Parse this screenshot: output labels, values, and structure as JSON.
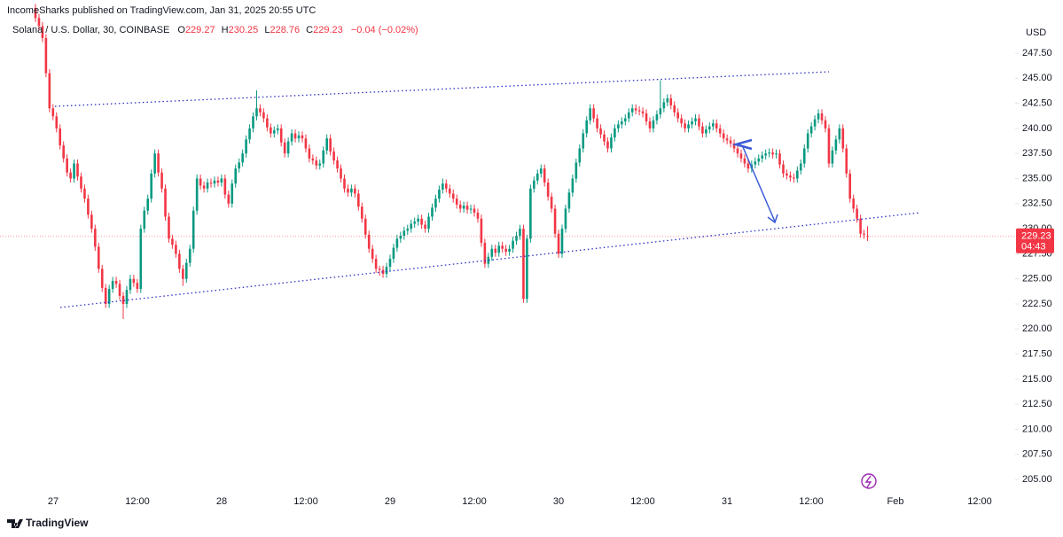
{
  "chart_data": {
    "type": "candlestick",
    "subtitle": "IncomeSharks published on TradingView.com, Jan 31, 2025 20:55 UTC",
    "title": "Solana / U.S. Dollar, 30, COINBASE",
    "ohlc_letters": [
      "O",
      "H",
      "L",
      "C"
    ],
    "change_label": "−0.04 (−0.02%)",
    "countdown": "04:43",
    "y_axis_unit": "USD",
    "watermark": "TradingView",
    "up_color": "#089981",
    "down_color": "#f23645",
    "grid": false,
    "xtick_labels": [
      "27",
      "12:00",
      "28",
      "12:00",
      "29",
      "12:00",
      "30",
      "12:00",
      "31",
      "12:00",
      "Feb",
      "12:00"
    ],
    "ylim": [
      201.5,
      252.8
    ],
    "yticks": [
      {
        "value": 205,
        "label": "205.00"
      },
      {
        "value": 207.5,
        "label": "207.50"
      },
      {
        "value": 210,
        "label": "210.00"
      },
      {
        "value": 212.5,
        "label": "212.50"
      },
      {
        "value": 215,
        "label": "215.00"
      },
      {
        "value": 217.5,
        "label": "217.50"
      },
      {
        "value": 220,
        "label": "220.00"
      },
      {
        "value": 222.5,
        "label": "222.50"
      },
      {
        "value": 225,
        "label": "225.00"
      },
      {
        "value": 227.5,
        "label": "227.50"
      },
      {
        "value": 230,
        "label": "230.00"
      },
      {
        "value": 232.5,
        "label": "232.50"
      },
      {
        "value": 235,
        "label": "235.00"
      },
      {
        "value": 237.5,
        "label": "237.50"
      },
      {
        "value": 240,
        "label": "240.00"
      },
      {
        "value": 242.5,
        "label": "242.50"
      },
      {
        "value": 245,
        "label": "245.00"
      },
      {
        "value": 247.5,
        "label": "247.50"
      }
    ],
    "open": [
      252.0,
      251.0,
      250.2,
      249.0,
      245.5,
      242.0,
      241.2,
      240.0,
      238.3,
      237.0,
      235.6,
      235.0,
      236.5,
      235.2,
      234.0,
      233.0,
      231.4,
      230.0,
      228.2,
      226.0,
      224.1,
      222.5,
      224.0,
      224.8,
      224.5,
      223.3,
      222.5,
      223.9,
      225.0,
      224.6,
      224.0,
      230.0,
      231.8,
      233.0,
      235.5,
      237.5,
      235.6,
      234.0,
      231.2,
      229.0,
      228.4,
      227.5,
      226.0,
      225.0,
      226.6,
      228.0,
      231.8,
      235.0,
      234.3,
      234.0,
      234.6,
      234.5,
      234.8,
      234.6,
      235.0,
      233.4,
      232.5,
      234.5,
      236.0,
      236.6,
      237.5,
      238.9,
      240.0,
      241.2,
      242.0,
      241.6,
      241.0,
      240.1,
      239.5,
      239.8,
      240.0,
      238.6,
      237.5,
      238.7,
      239.5,
      239.0,
      239.3,
      239.0,
      238.0,
      237.0,
      236.8,
      236.3,
      236.5,
      237.8,
      239.0,
      237.7,
      236.8,
      236.0,
      235.0,
      234.0,
      233.6,
      234.0,
      233.5,
      232.2,
      231.0,
      229.4,
      228.0,
      227.0,
      226.0,
      225.9,
      225.5,
      226.2,
      227.0,
      228.1,
      229.0,
      229.3,
      229.8,
      230.0,
      230.5,
      230.7,
      231.0,
      230.4,
      230.0,
      231.2,
      232.1,
      233.0,
      233.9,
      234.5,
      234.0,
      233.5,
      233.0,
      232.4,
      232.0,
      232.3,
      231.9,
      232.0,
      231.6,
      231.0,
      228.6,
      226.5,
      227.2,
      228.0,
      227.6,
      228.3,
      228.0,
      227.7,
      228.0,
      228.8,
      229.3,
      230.0,
      223.0,
      229.0,
      234.0,
      234.8,
      235.5,
      236.0,
      234.6,
      233.2,
      232.0,
      229.5,
      227.5,
      230.0,
      232.0,
      233.6,
      235.0,
      236.6,
      238.0,
      239.5,
      240.8,
      242.0,
      241.0,
      240.0,
      239.4,
      238.7,
      238.0,
      239.1,
      240.0,
      240.4,
      240.7,
      241.0,
      241.6,
      242.0,
      241.8,
      241.7,
      241.5,
      240.7,
      240.0,
      240.8,
      241.4,
      242.0,
      242.6,
      243.0,
      242.3,
      241.6,
      241.0,
      240.5,
      240.0,
      240.4,
      240.7,
      241.0,
      240.2,
      239.5,
      239.9,
      240.2,
      240.5,
      240.0,
      239.5,
      239.0,
      238.8,
      238.5,
      238.0,
      237.5,
      237.0,
      236.5,
      236.0,
      236.4,
      236.7,
      237.0,
      237.3,
      237.5,
      237.6,
      237.4,
      237.5,
      236.4,
      235.5,
      235.3,
      235.1,
      235.0,
      235.8,
      236.5,
      238.0,
      239.5,
      240.2,
      240.9,
      241.5,
      240.8,
      240.0,
      236.5,
      237.8,
      238.9,
      240.0,
      238.0,
      235.5,
      233.0,
      232.0,
      231.0,
      229.5,
      229.27
    ],
    "high": [
      252.4,
      251.4,
      250.6,
      249.4,
      245.9,
      242.4,
      241.6,
      240.4,
      238.7,
      237.4,
      236.0,
      236.9,
      236.9,
      235.6,
      234.4,
      233.4,
      231.8,
      230.4,
      228.6,
      226.4,
      224.5,
      224.4,
      225.2,
      225.2,
      224.9,
      223.7,
      224.3,
      225.4,
      225.4,
      225.0,
      230.4,
      232.2,
      233.4,
      235.9,
      237.9,
      237.9,
      236.0,
      234.4,
      231.6,
      229.4,
      228.8,
      227.9,
      226.4,
      227.0,
      228.4,
      232.2,
      235.4,
      235.4,
      234.7,
      235.0,
      235.0,
      235.2,
      235.2,
      235.4,
      235.4,
      233.8,
      234.9,
      236.4,
      237.0,
      237.9,
      239.3,
      240.4,
      241.6,
      243.8,
      242.4,
      242.0,
      241.4,
      240.5,
      240.2,
      240.4,
      240.4,
      239.0,
      239.1,
      239.9,
      239.9,
      239.7,
      239.7,
      239.4,
      238.4,
      237.4,
      237.2,
      236.9,
      238.2,
      239.4,
      239.4,
      238.1,
      237.2,
      236.4,
      235.4,
      234.4,
      234.4,
      234.4,
      233.9,
      232.6,
      231.4,
      229.8,
      228.4,
      227.4,
      226.3,
      226.3,
      226.6,
      227.4,
      228.5,
      229.4,
      229.7,
      230.2,
      230.4,
      230.9,
      231.1,
      231.4,
      231.4,
      230.8,
      231.6,
      232.5,
      233.4,
      234.3,
      235.0,
      234.9,
      234.4,
      233.9,
      233.4,
      232.8,
      232.7,
      232.7,
      232.4,
      232.4,
      232.0,
      231.4,
      229.0,
      227.6,
      228.4,
      228.4,
      228.7,
      228.7,
      228.4,
      228.4,
      229.2,
      229.7,
      230.4,
      230.4,
      229.4,
      234.4,
      235.2,
      235.9,
      236.4,
      236.4,
      235.0,
      233.6,
      232.4,
      229.9,
      230.4,
      232.4,
      234.0,
      235.4,
      237.0,
      238.4,
      239.9,
      241.2,
      242.4,
      242.4,
      241.4,
      240.4,
      239.8,
      239.1,
      239.5,
      240.4,
      240.8,
      241.1,
      241.4,
      242.0,
      242.4,
      242.4,
      242.2,
      242.1,
      241.9,
      241.1,
      241.2,
      241.8,
      244.8,
      243.0,
      243.4,
      243.4,
      242.7,
      242.0,
      241.4,
      240.9,
      240.8,
      241.1,
      241.4,
      241.4,
      240.6,
      240.3,
      240.6,
      240.9,
      240.9,
      240.4,
      239.9,
      239.4,
      239.2,
      238.9,
      238.4,
      237.9,
      237.4,
      236.9,
      236.8,
      237.1,
      237.4,
      237.7,
      237.9,
      238.0,
      238.0,
      237.9,
      237.9,
      236.8,
      235.9,
      235.7,
      235.5,
      236.2,
      236.9,
      238.4,
      239.9,
      240.6,
      241.3,
      241.9,
      241.9,
      241.2,
      240.4,
      238.2,
      239.3,
      240.4,
      240.4,
      238.4,
      235.9,
      233.4,
      232.4,
      231.4,
      229.9,
      230.25
    ],
    "low": [
      250.6,
      249.8,
      248.6,
      245.1,
      241.6,
      240.8,
      239.6,
      237.9,
      236.6,
      235.2,
      234.6,
      234.6,
      234.8,
      233.6,
      232.6,
      231.0,
      229.6,
      227.8,
      225.6,
      223.7,
      222.1,
      222.1,
      223.6,
      224.1,
      222.9,
      221.0,
      222.1,
      223.5,
      224.2,
      223.6,
      223.6,
      229.6,
      231.4,
      232.6,
      235.1,
      235.2,
      233.6,
      230.8,
      228.6,
      228.0,
      227.1,
      225.6,
      224.3,
      224.6,
      226.2,
      227.6,
      231.4,
      233.9,
      233.6,
      233.6,
      234.1,
      234.1,
      234.2,
      234.2,
      233.0,
      232.1,
      232.1,
      234.1,
      235.6,
      236.2,
      237.1,
      238.5,
      239.6,
      240.8,
      241.2,
      240.6,
      239.7,
      239.1,
      239.1,
      239.4,
      238.2,
      237.1,
      237.1,
      238.3,
      238.6,
      238.6,
      238.6,
      237.6,
      236.6,
      236.4,
      235.9,
      235.9,
      236.1,
      237.4,
      237.3,
      236.4,
      235.6,
      234.6,
      233.6,
      233.2,
      233.2,
      233.1,
      231.8,
      230.6,
      229.0,
      227.6,
      226.6,
      225.6,
      225.3,
      225.1,
      225.1,
      225.8,
      226.6,
      227.7,
      228.6,
      228.9,
      229.4,
      229.6,
      230.1,
      230.3,
      230.0,
      229.6,
      229.6,
      230.8,
      231.7,
      232.6,
      233.5,
      233.6,
      233.1,
      232.6,
      232.0,
      231.6,
      231.6,
      231.5,
      231.5,
      231.2,
      230.6,
      228.2,
      226.1,
      226.1,
      226.8,
      227.2,
      227.2,
      227.6,
      227.3,
      227.3,
      227.6,
      228.4,
      228.9,
      222.6,
      222.6,
      228.6,
      233.6,
      234.4,
      235.1,
      234.2,
      232.8,
      231.6,
      229.1,
      227.1,
      227.1,
      229.6,
      231.6,
      233.2,
      234.6,
      236.2,
      237.6,
      239.1,
      240.4,
      240.6,
      239.6,
      239.0,
      238.3,
      237.6,
      237.6,
      238.7,
      239.6,
      240.0,
      240.3,
      240.6,
      241.2,
      241.4,
      241.3,
      241.1,
      240.3,
      239.6,
      239.6,
      240.4,
      241.0,
      241.6,
      242.2,
      241.9,
      241.2,
      240.6,
      240.1,
      239.6,
      239.6,
      240.0,
      240.3,
      239.8,
      239.1,
      239.1,
      239.5,
      239.8,
      239.6,
      239.1,
      238.6,
      238.4,
      238.1,
      237.6,
      237.1,
      236.6,
      236.1,
      235.6,
      235.6,
      236.0,
      236.3,
      236.6,
      236.9,
      237.1,
      237.0,
      237.0,
      236.0,
      235.1,
      234.9,
      234.7,
      234.6,
      234.6,
      235.4,
      236.1,
      237.6,
      239.1,
      239.8,
      240.5,
      240.4,
      239.6,
      236.1,
      236.1,
      237.4,
      238.5,
      237.6,
      235.1,
      232.6,
      231.6,
      230.6,
      229.1,
      229.0,
      228.76
    ],
    "close": [
      251.0,
      250.2,
      249.0,
      245.5,
      242.0,
      241.2,
      240.0,
      238.3,
      237.0,
      235.6,
      235.0,
      236.5,
      235.2,
      234.0,
      233.0,
      231.4,
      230.0,
      228.2,
      226.0,
      224.1,
      222.5,
      224.0,
      224.8,
      224.5,
      223.3,
      222.5,
      223.9,
      225.0,
      224.6,
      224.0,
      230.0,
      231.8,
      233.0,
      235.5,
      237.5,
      235.6,
      234.0,
      231.2,
      229.0,
      228.4,
      227.5,
      226.0,
      225.0,
      226.6,
      228.0,
      231.8,
      235.0,
      234.3,
      234.0,
      234.6,
      234.5,
      234.8,
      234.6,
      235.0,
      233.4,
      232.5,
      234.5,
      236.0,
      236.6,
      237.5,
      238.9,
      240.0,
      241.2,
      242.0,
      241.6,
      241.0,
      240.1,
      239.5,
      239.8,
      240.0,
      238.6,
      237.5,
      238.7,
      239.5,
      239.0,
      239.3,
      239.0,
      238.0,
      237.0,
      236.8,
      236.3,
      236.5,
      237.8,
      239.0,
      237.7,
      236.8,
      236.0,
      235.0,
      234.0,
      233.6,
      234.0,
      233.5,
      232.2,
      231.0,
      229.4,
      228.0,
      227.0,
      226.0,
      225.9,
      225.5,
      226.2,
      227.0,
      228.1,
      229.0,
      229.3,
      229.8,
      230.0,
      230.5,
      230.7,
      231.0,
      230.4,
      230.0,
      231.2,
      232.1,
      233.0,
      233.9,
      234.5,
      234.0,
      233.5,
      233.0,
      232.4,
      232.0,
      232.3,
      231.9,
      232.0,
      231.6,
      231.0,
      228.6,
      226.5,
      227.2,
      228.0,
      227.6,
      228.3,
      228.0,
      227.7,
      228.0,
      228.8,
      229.3,
      230.0,
      223.0,
      229.0,
      234.0,
      234.8,
      235.5,
      236.0,
      234.6,
      233.2,
      232.0,
      229.5,
      227.5,
      230.0,
      232.0,
      233.6,
      235.0,
      236.6,
      238.0,
      239.5,
      240.8,
      242.0,
      241.0,
      240.0,
      239.4,
      238.7,
      238.0,
      239.1,
      240.0,
      240.4,
      240.7,
      241.0,
      241.6,
      242.0,
      241.8,
      241.7,
      241.5,
      240.7,
      240.0,
      240.8,
      241.4,
      242.0,
      242.6,
      243.0,
      242.3,
      241.6,
      241.0,
      240.5,
      240.0,
      240.4,
      240.7,
      241.0,
      240.2,
      239.5,
      239.9,
      240.2,
      240.5,
      240.0,
      239.5,
      239.0,
      238.8,
      238.5,
      238.0,
      237.5,
      237.0,
      236.5,
      236.0,
      236.4,
      236.7,
      237.0,
      237.3,
      237.5,
      237.6,
      237.4,
      237.5,
      236.4,
      235.5,
      235.3,
      235.1,
      235.0,
      235.8,
      236.5,
      238.0,
      239.5,
      240.2,
      240.9,
      241.5,
      240.8,
      240.0,
      236.5,
      237.8,
      238.9,
      240.0,
      238.0,
      235.5,
      233.0,
      232.0,
      231.0,
      229.5,
      229.4,
      229.23
    ]
  }
}
